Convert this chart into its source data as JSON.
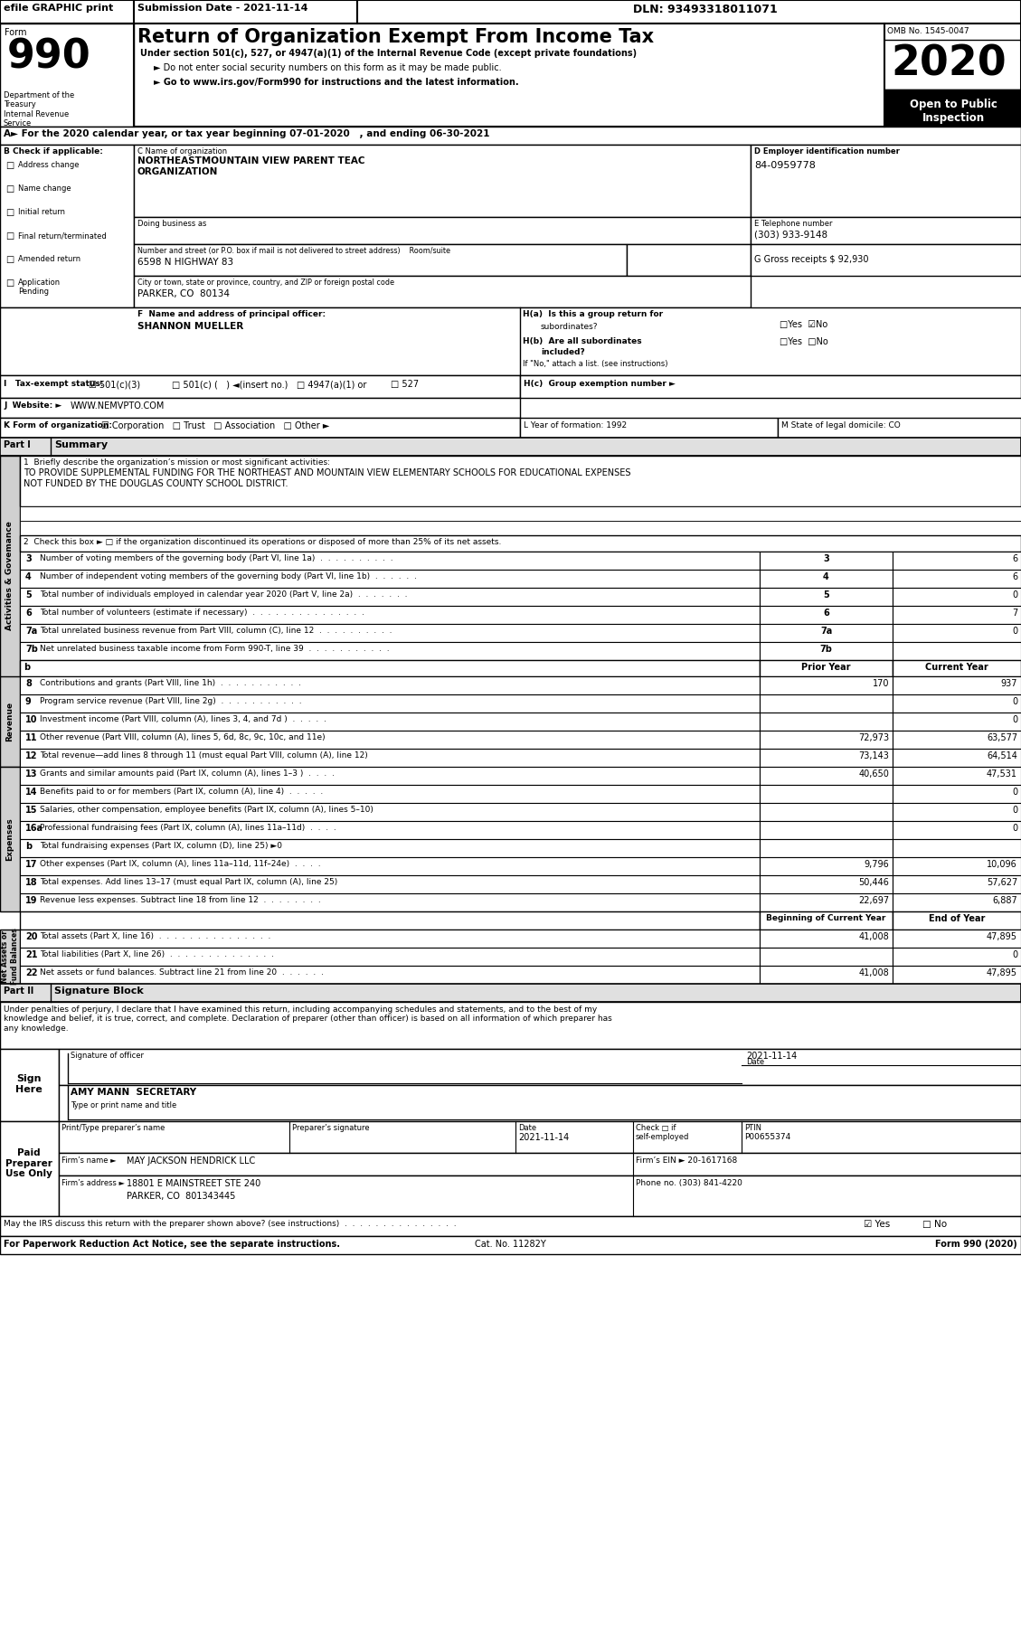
{
  "title": "Return of Organization Exempt From Income Tax",
  "form_number": "990",
  "year": "2020",
  "omb": "OMB No. 1545-0047",
  "efile_header": "efile GRAPHIC print",
  "submission_date": "Submission Date - 2021-11-14",
  "dln": "DLN: 93493318011071",
  "subtitle1": "Under section 501(c), 527, or 4947(a)(1) of the Internal Revenue Code (except private foundations)",
  "subtitle2": "► Do not enter social security numbers on this form as it may be made public.",
  "subtitle3": "► Go to www.irs.gov/Form990 for instructions and the latest information.",
  "section_a": "A► For the 2020 calendar year, or tax year beginning 07-01-2020   , and ending 06-30-2021",
  "check_if": "B Check if applicable:",
  "checks": [
    "Address change",
    "Name change",
    "Initial return",
    "Final return/terminated",
    "Amended return",
    "Application\nPending"
  ],
  "org_name_label": "C Name of organization",
  "org_name": "NORTHEASTMOUNTAIN VIEW PARENT TEAC\nORGANIZATION",
  "dba_label": "Doing business as",
  "address_label": "Number and street (or P.O. box if mail is not delivered to street address)    Room/suite",
  "address": "6598 N HIGHWAY 83",
  "city_label": "City or town, state or province, country, and ZIP or foreign postal code",
  "city": "PARKER, CO  80134",
  "ein_label": "D Employer identification number",
  "ein": "84-0959778",
  "phone_label": "E Telephone number",
  "phone": "(303) 933-9148",
  "gross_label": "G Gross receipts $ 92,930",
  "principal_label": "F  Name and address of principal officer:",
  "principal": "SHANNON MUELLER",
  "ha_label": "H(a)  Is this a group return for",
  "hb_label": "H(b)  Are all subordinates",
  "hb_label2": "included?",
  "hno_label": "If \"No,\" attach a list. (see instructions)",
  "hc_label": "H(c)  Group exemption number ►",
  "tax_label": "I   Tax-exempt status:",
  "tax_501c3": "☑ 501(c)(3)",
  "tax_501c": "□ 501(c) (   ) ◄(insert no.)",
  "tax_4947": "□ 4947(a)(1) or",
  "tax_527": "□ 527",
  "website_label": "J  Website: ►",
  "website": "WWW.NEMVPTO.COM",
  "form_org_label": "K Form of organization:",
  "form_org": "☑ Corporation   □ Trust   □ Association   □ Other ►",
  "year_formed_label": "L Year of formation: 1992",
  "state_label": "M State of legal domicile: CO",
  "part1_label": "Part I",
  "part1_title": "Summary",
  "mission_label": "1  Briefly describe the organization’s mission or most significant activities:",
  "mission": "TO PROVIDE SUPPLEMENTAL FUNDING FOR THE NORTHEAST AND MOUNTAIN VIEW ELEMENTARY SCHOOLS FOR EDUCATIONAL EXPENSES\nNOT FUNDED BY THE DOUGLAS COUNTY SCHOOL DISTRICT.",
  "check2": "2  Check this box ► □ if the organization discontinued its operations or disposed of more than 25% of its net assets.",
  "lines": [
    {
      "num": "3",
      "label": "Number of voting members of the governing body (Part VI, line 1a)  .  .  .  .  .  .  .  .  .  .",
      "current": "6"
    },
    {
      "num": "4",
      "label": "Number of independent voting members of the governing body (Part VI, line 1b)  .  .  .  .  .  .",
      "current": "6"
    },
    {
      "num": "5",
      "label": "Total number of individuals employed in calendar year 2020 (Part V, line 2a)  .  .  .  .  .  .  .",
      "current": "0"
    },
    {
      "num": "6",
      "label": "Total number of volunteers (estimate if necessary)  .  .  .  .  .  .  .  .  .  .  .  .  .  .  .",
      "current": "7"
    },
    {
      "num": "7a",
      "label": "Total unrelated business revenue from Part VIII, column (C), line 12  .  .  .  .  .  .  .  .  .  .",
      "current": "0"
    },
    {
      "num": "7b",
      "label": "Net unrelated business taxable income from Form 990-T, line 39  .  .  .  .  .  .  .  .  .  .  .",
      "current": ""
    }
  ],
  "col_prior": "Prior Year",
  "col_current": "Current Year",
  "revenue_lines": [
    {
      "num": "8",
      "label": "Contributions and grants (Part VIII, line 1h)  .  .  .  .  .  .  .  .  .  .  .",
      "prior": "170",
      "current": "937"
    },
    {
      "num": "9",
      "label": "Program service revenue (Part VIII, line 2g)  .  .  .  .  .  .  .  .  .  .  .",
      "prior": "",
      "current": "0"
    },
    {
      "num": "10",
      "label": "Investment income (Part VIII, column (A), lines 3, 4, and 7d )  .  .  .  .  .",
      "prior": "",
      "current": "0"
    },
    {
      "num": "11",
      "label": "Other revenue (Part VIII, column (A), lines 5, 6d, 8c, 9c, 10c, and 11e)",
      "prior": "72,973",
      "current": "63,577"
    },
    {
      "num": "12",
      "label": "Total revenue—add lines 8 through 11 (must equal Part VIII, column (A), line 12)",
      "prior": "73,143",
      "current": "64,514"
    }
  ],
  "expense_lines": [
    {
      "num": "13",
      "label": "Grants and similar amounts paid (Part IX, column (A), lines 1–3 )  .  .  .  .",
      "prior": "40,650",
      "current": "47,531"
    },
    {
      "num": "14",
      "label": "Benefits paid to or for members (Part IX, column (A), line 4)  .  .  .  .  .",
      "prior": "",
      "current": "0"
    },
    {
      "num": "15",
      "label": "Salaries, other compensation, employee benefits (Part IX, column (A), lines 5–10)",
      "prior": "",
      "current": "0"
    },
    {
      "num": "16a",
      "label": "Professional fundraising fees (Part IX, column (A), lines 11a–11d)  .  .  .  .",
      "prior": "",
      "current": "0"
    },
    {
      "num": "b",
      "label": "Total fundraising expenses (Part IX, column (D), line 25) ►0",
      "prior": "",
      "current": ""
    },
    {
      "num": "17",
      "label": "Other expenses (Part IX, column (A), lines 11a–11d, 11f–24e)  .  .  .  .",
      "prior": "9,796",
      "current": "10,096"
    },
    {
      "num": "18",
      "label": "Total expenses. Add lines 13–17 (must equal Part IX, column (A), line 25)",
      "prior": "50,446",
      "current": "57,627"
    },
    {
      "num": "19",
      "label": "Revenue less expenses. Subtract line 18 from line 12  .  .  .  .  .  .  .  .",
      "prior": "22,697",
      "current": "6,887"
    }
  ],
  "netasset_col1": "Beginning of Current Year",
  "netasset_col2": "End of Year",
  "netasset_lines": [
    {
      "num": "20",
      "label": "Total assets (Part X, line 16)  .  .  .  .  .  .  .  .  .  .  .  .  .  .  .",
      "col1": "41,008",
      "col2": "47,895"
    },
    {
      "num": "21",
      "label": "Total liabilities (Part X, line 26)  .  .  .  .  .  .  .  .  .  .  .  .  .  .",
      "col1": "",
      "col2": "0"
    },
    {
      "num": "22",
      "label": "Net assets or fund balances. Subtract line 21 from line 20  .  .  .  .  .  .",
      "col1": "41,008",
      "col2": "47,895"
    }
  ],
  "part2_label": "Part II",
  "part2_title": "Signature Block",
  "sig_text": "Under penalties of perjury, I declare that I have examined this return, including accompanying schedules and statements, and to the best of my\nknowledge and belief, it is true, correct, and complete. Declaration of preparer (other than officer) is based on all information of which preparer has\nany knowledge.",
  "sig_label": "Signature of officer",
  "sig_date": "2021-11-14",
  "sig_date_label": "Date",
  "officer_name": "AMY MANN  SECRETARY",
  "officer_title": "Type or print name and title",
  "preparer_name_label": "Print/Type preparer’s name",
  "preparer_sig_label": "Preparer’s signature",
  "preparer_date_label": "Date",
  "preparer_date": "2021-11-14",
  "preparer_check": "Check □ if\nself-employed",
  "preparer_ptin": "PTIN\nP00655374",
  "firm_name_label": "Firm’s name",
  "firm_name": "MAY JACKSON HENDRICK LLC",
  "firm_ein_label": "Firm’s EIN ►",
  "firm_ein": "20-1617168",
  "firm_address_label": "Firm’s address",
  "firm_address1": "18801 E MAINSTREET STE 240",
  "firm_address2": "PARKER, CO  801343445",
  "phone_no_label": "Phone no.",
  "phone_no": "(303) 841-4220",
  "irs_discuss": "May the IRS discuss this return with the preparer shown above? (see instructions)  .  .  .  .  .  .  .  .  .  .  .  .  .  .  .",
  "irs_yes": "☑ Yes",
  "irs_no": "□ No",
  "footer1": "For Paperwork Reduction Act Notice, see the separate instructions.",
  "footer2": "Cat. No. 11282Y",
  "footer3": "Form 990 (2020)"
}
